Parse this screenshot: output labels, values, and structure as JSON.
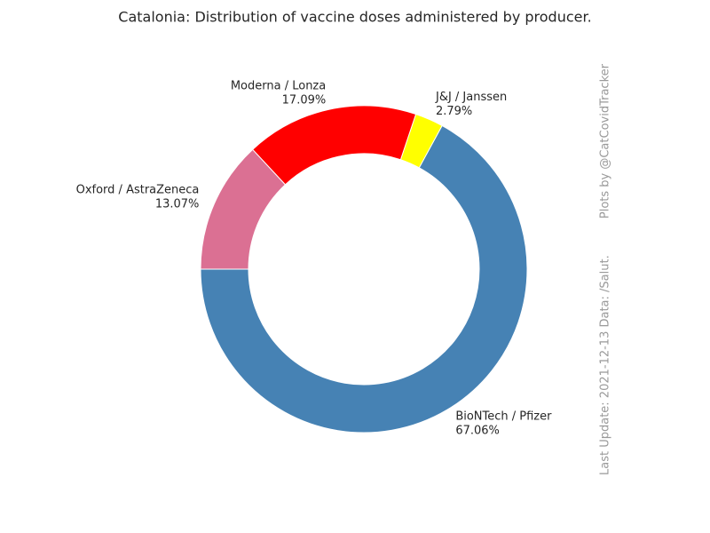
{
  "chart_data": {
    "type": "donut",
    "title": "Catalonia: Distribution of vaccine doses administered by producer.",
    "categories": [
      "BioNTech / Pfizer",
      "J&J / Janssen",
      "Moderna / Lonza",
      "Oxford / AstraZeneca"
    ],
    "values": [
      67.06,
      2.79,
      17.09,
      13.07
    ],
    "value_labels": [
      "67.06%",
      "2.79%",
      "17.09%",
      "13.07%"
    ],
    "colors": [
      "#4682b4",
      "#ffff00",
      "#ff0000",
      "#db7093"
    ],
    "annotations": [
      "Last Update: 2021-12-13 Data: /Salut.",
      "Plots by @CatCovidTracker"
    ]
  }
}
